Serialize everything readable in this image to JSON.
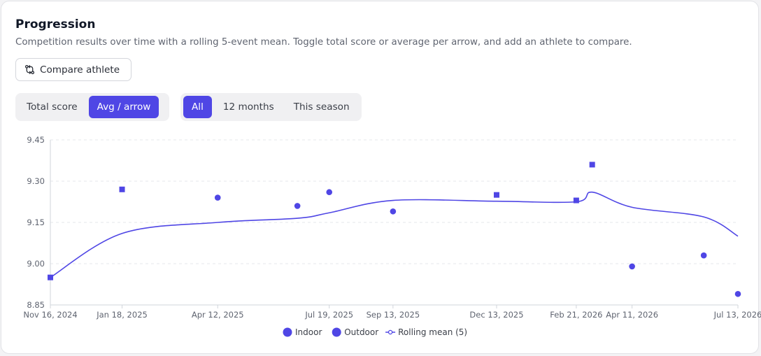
{
  "header": {
    "title": "Progression",
    "subtitle": "Competition results over time with a rolling 5-event mean. Toggle total score or average per arrow, and add an athlete to compare."
  },
  "controls": {
    "compare_label": "Compare athlete",
    "metric_tabs": [
      "Total score",
      "Avg / arrow"
    ],
    "metric_active": "Avg / arrow",
    "range_tabs": [
      "All",
      "12 months",
      "This season"
    ],
    "range_active": "All"
  },
  "colors": {
    "accent": "#4f46e5",
    "grid": "#e5e7eb",
    "axis": "#d1d5db"
  },
  "chart_data": {
    "type": "scatter",
    "x_is_date": true,
    "xlim": [
      "2024-11-16",
      "2026-07-13"
    ],
    "ylim": [
      8.85,
      9.45
    ],
    "y_ticks": [
      "9.45",
      "9.30",
      "9.15",
      "9.00",
      "8.85"
    ],
    "x_ticks": [
      {
        "date": "2024-11-16",
        "label": "Nov 16, 2024"
      },
      {
        "date": "2025-01-18",
        "label": "Jan 18, 2025"
      },
      {
        "date": "2025-04-12",
        "label": "Apr 12, 2025"
      },
      {
        "date": "2025-07-19",
        "label": "Jul 19, 2025"
      },
      {
        "date": "2025-09-13",
        "label": "Sep 13, 2025"
      },
      {
        "date": "2025-12-13",
        "label": "Dec 13, 2025"
      },
      {
        "date": "2026-02-21",
        "label": "Feb 21, 2026"
      },
      {
        "date": "2026-04-11",
        "label": "Apr 11, 2026"
      },
      {
        "date": "2026-07-13",
        "label": "Jul 13, 2026"
      }
    ],
    "grid": "horizontal-dashed",
    "legend_position": "bottom-center",
    "series": [
      {
        "name": "Indoor",
        "marker": "square",
        "color": "#4f46e5",
        "points": [
          {
            "x": "2024-11-16",
            "y": 8.95
          },
          {
            "x": "2025-01-18",
            "y": 9.27
          },
          {
            "x": "2025-12-13",
            "y": 9.25
          },
          {
            "x": "2026-02-21",
            "y": 9.23
          },
          {
            "x": "2026-03-07",
            "y": 9.36
          }
        ]
      },
      {
        "name": "Outdoor",
        "marker": "circle",
        "color": "#4f46e5",
        "points": [
          {
            "x": "2025-04-12",
            "y": 9.24
          },
          {
            "x": "2025-06-21",
            "y": 9.21
          },
          {
            "x": "2025-07-19",
            "y": 9.26
          },
          {
            "x": "2025-09-13",
            "y": 9.19
          },
          {
            "x": "2026-04-11",
            "y": 8.99
          },
          {
            "x": "2026-06-13",
            "y": 9.03
          },
          {
            "x": "2026-07-13",
            "y": 8.89
          }
        ]
      },
      {
        "name": "Rolling mean (5)",
        "marker": "line",
        "color": "#4f46e5",
        "points": [
          {
            "x": "2024-11-16",
            "y": 8.95
          },
          {
            "x": "2025-01-18",
            "y": 9.11
          },
          {
            "x": "2025-04-12",
            "y": 9.15
          },
          {
            "x": "2025-06-21",
            "y": 9.165
          },
          {
            "x": "2025-07-19",
            "y": 9.185
          },
          {
            "x": "2025-09-13",
            "y": 9.23
          },
          {
            "x": "2025-12-13",
            "y": 9.227
          },
          {
            "x": "2026-02-21",
            "y": 9.225
          },
          {
            "x": "2026-03-07",
            "y": 9.26
          },
          {
            "x": "2026-04-11",
            "y": 9.205
          },
          {
            "x": "2026-06-13",
            "y": 9.17
          },
          {
            "x": "2026-07-13",
            "y": 9.1
          }
        ]
      }
    ]
  }
}
